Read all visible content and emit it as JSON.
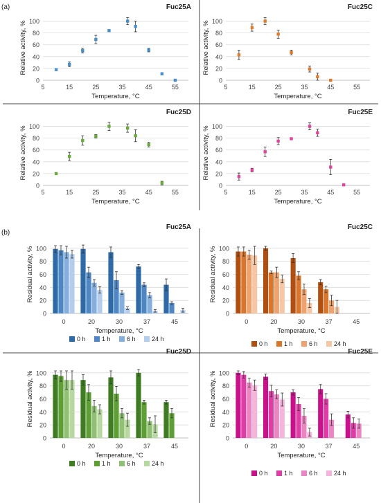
{
  "figure": {
    "panel_a_label": "(a)",
    "panel_b_label": "(b)"
  },
  "chart_data": [
    {
      "type": "scatter",
      "panel": "a",
      "title": "Fuc25A",
      "xlabel": "Temperature, °C",
      "ylabel": "Relative activity, %",
      "xlim": [
        5,
        60
      ],
      "ylim": [
        0,
        110
      ],
      "xticks": [
        5,
        15,
        25,
        35,
        45,
        55
      ],
      "yticks": [
        0,
        20,
        40,
        60,
        80,
        100
      ],
      "color": "#4a8fc9",
      "series": [
        {
          "x": [
            10,
            15,
            20,
            25,
            30,
            37,
            40,
            45,
            50,
            55
          ],
          "y": [
            18,
            27,
            50,
            69,
            84,
            100,
            91,
            51,
            11,
            0
          ],
          "err": [
            0,
            4,
            4,
            7,
            0,
            6,
            9,
            3,
            0,
            0
          ]
        }
      ]
    },
    {
      "type": "scatter",
      "panel": "a",
      "title": "Fuc25C",
      "xlabel": "Temperature, °C",
      "ylabel": "Relative activity, %",
      "xlim": [
        5,
        60
      ],
      "ylim": [
        0,
        110
      ],
      "xticks": [
        5,
        15,
        25,
        35,
        45,
        55
      ],
      "yticks": [
        0,
        20,
        40,
        60,
        80,
        100
      ],
      "color": "#e07b2c",
      "series": [
        {
          "x": [
            10,
            15,
            20,
            25,
            30,
            37,
            40,
            45
          ],
          "y": [
            43,
            89,
            100,
            78,
            47,
            19,
            6,
            0
          ],
          "err": [
            8,
            6,
            6,
            7,
            4,
            5,
            6,
            0
          ]
        }
      ]
    },
    {
      "type": "scatter",
      "panel": "a",
      "title": "Fuc25D",
      "xlabel": "Temperature, °C",
      "ylabel": "Relative activity, %",
      "xlim": [
        5,
        60
      ],
      "ylim": [
        0,
        110
      ],
      "xticks": [
        5,
        15,
        25,
        35,
        45,
        55
      ],
      "yticks": [
        0,
        20,
        40,
        60,
        80,
        100
      ],
      "color": "#6aab3c",
      "series": [
        {
          "x": [
            10,
            15,
            20,
            25,
            30,
            37,
            40,
            45,
            50
          ],
          "y": [
            20,
            49,
            76,
            83,
            100,
            97,
            84,
            69,
            4
          ],
          "err": [
            0,
            7,
            8,
            3,
            7,
            7,
            10,
            4,
            3
          ]
        }
      ]
    },
    {
      "type": "scatter",
      "panel": "a",
      "title": "Fuc25E",
      "xlabel": "Temperature, °C",
      "ylabel": "Relative activity, %",
      "xlim": [
        5,
        60
      ],
      "ylim": [
        0,
        110
      ],
      "xticks": [
        5,
        15,
        25,
        35,
        45,
        55
      ],
      "yticks": [
        0,
        20,
        40,
        60,
        80,
        100
      ],
      "color": "#e0459d",
      "series": [
        {
          "x": [
            10,
            15,
            20,
            25,
            30,
            37,
            40,
            45,
            50
          ],
          "y": [
            15,
            26,
            57,
            75,
            79,
            100,
            89,
            31,
            1
          ],
          "err": [
            6,
            3,
            8,
            6,
            0,
            6,
            6,
            13,
            0
          ]
        }
      ]
    },
    {
      "type": "bar",
      "panel": "b",
      "title": "Fuc25A",
      "xlabel": "Temperature,  °C",
      "ylabel": "Residual activity, %",
      "ylim": [
        0,
        120
      ],
      "yticks": [
        0,
        20,
        40,
        60,
        80,
        100
      ],
      "categories": [
        "0",
        "20",
        "30",
        "37",
        "45"
      ],
      "legend": "bottom",
      "series": [
        {
          "name": "0 h",
          "color": "#2e6aa6",
          "values": [
            99,
            99,
            94,
            72,
            44
          ],
          "err": [
            5,
            6,
            8,
            3,
            9
          ]
        },
        {
          "name": "1 h",
          "color": "#4e87c3",
          "values": [
            97,
            63,
            51,
            44,
            16
          ],
          "err": [
            7,
            8,
            13,
            3,
            2
          ]
        },
        {
          "name": "6 h",
          "color": "#84aedb",
          "values": [
            94,
            47,
            32,
            28,
            null
          ],
          "err": [
            9,
            5,
            3,
            4,
            0
          ]
        },
        {
          "name": "24 h",
          "color": "#b4cdec",
          "values": [
            91,
            36,
            8,
            4,
            5
          ],
          "err": [
            6,
            5,
            2,
            2,
            3
          ]
        }
      ]
    },
    {
      "type": "bar",
      "panel": "b",
      "title": "Fuc25C",
      "xlabel": "Temperature,  °C",
      "ylabel": "Residual activity, %",
      "ylim": [
        0,
        120
      ],
      "yticks": [
        0,
        20,
        40,
        60,
        80,
        100
      ],
      "categories": [
        "0",
        "20",
        "30",
        "37",
        "45"
      ],
      "legend": "bottom",
      "series": [
        {
          "name": "0 h",
          "color": "#b04f10",
          "values": [
            95,
            100,
            85,
            48,
            null
          ],
          "err": [
            7,
            3,
            7,
            4,
            0
          ]
        },
        {
          "name": "1 h",
          "color": "#d9762d",
          "values": [
            95,
            63,
            58,
            37,
            null
          ],
          "err": [
            7,
            2,
            6,
            5,
            0
          ]
        },
        {
          "name": "6 h",
          "color": "#eda270",
          "values": [
            90,
            63,
            37,
            20,
            null
          ],
          "err": [
            7,
            8,
            8,
            8,
            0
          ]
        },
        {
          "name": "24 h",
          "color": "#f5c7a4",
          "values": [
            89,
            53,
            16,
            10,
            null
          ],
          "err": [
            14,
            6,
            7,
            10,
            0
          ]
        }
      ]
    },
    {
      "type": "bar",
      "panel": "b",
      "title": "Fuc25D",
      "xlabel": "Temperature, °C",
      "ylabel": "Residual activity, %",
      "ylim": [
        0,
        120
      ],
      "yticks": [
        0,
        20,
        40,
        60,
        80,
        100
      ],
      "categories": [
        "0",
        "20",
        "30",
        "37",
        "45"
      ],
      "legend": "bottom",
      "series": [
        {
          "name": "0 h",
          "color": "#3f7d22",
          "values": [
            97,
            89,
            93,
            100,
            55
          ],
          "err": [
            6,
            8,
            10,
            5,
            3
          ]
        },
        {
          "name": "1 h",
          "color": "#5e9f33",
          "values": [
            95,
            70,
            68,
            55,
            38
          ],
          "err": [
            8,
            12,
            11,
            3,
            7
          ]
        },
        {
          "name": "6 h",
          "color": "#8fc073",
          "values": [
            89,
            49,
            38,
            26,
            null
          ],
          "err": [
            14,
            9,
            7,
            5,
            0
          ]
        },
        {
          "name": "24 h",
          "color": "#b7d9a1",
          "values": [
            89,
            44,
            28,
            21,
            null
          ],
          "err": [
            14,
            7,
            10,
            13,
            0
          ]
        }
      ]
    },
    {
      "type": "bar",
      "panel": "b",
      "title": "Fuc25E",
      "xlabel": "Temperature, °C",
      "ylabel": "Residual activity, %",
      "ylim": [
        0,
        120
      ],
      "yticks": [
        0,
        20,
        40,
        60,
        80,
        100
      ],
      "categories": [
        "0",
        "20",
        "30",
        "37",
        "45"
      ],
      "legend": "bottom",
      "series": [
        {
          "name": "0 h",
          "color": "#c8118a",
          "values": [
            100,
            94,
            70,
            75,
            36
          ],
          "err": [
            3,
            4,
            4,
            7,
            5
          ]
        },
        {
          "name": "1 h",
          "color": "#e03ca6",
          "values": [
            97,
            72,
            52,
            60,
            23
          ],
          "err": [
            5,
            9,
            10,
            8,
            8
          ]
        },
        {
          "name": "6 h",
          "color": "#ec86c3",
          "values": [
            85,
            67,
            34,
            28,
            22
          ],
          "err": [
            7,
            7,
            11,
            9,
            7
          ]
        },
        {
          "name": "24 h",
          "color": "#f5b4da",
          "values": [
            81,
            59,
            9,
            null,
            null
          ],
          "err": [
            8,
            10,
            6,
            0,
            0
          ]
        }
      ]
    }
  ]
}
